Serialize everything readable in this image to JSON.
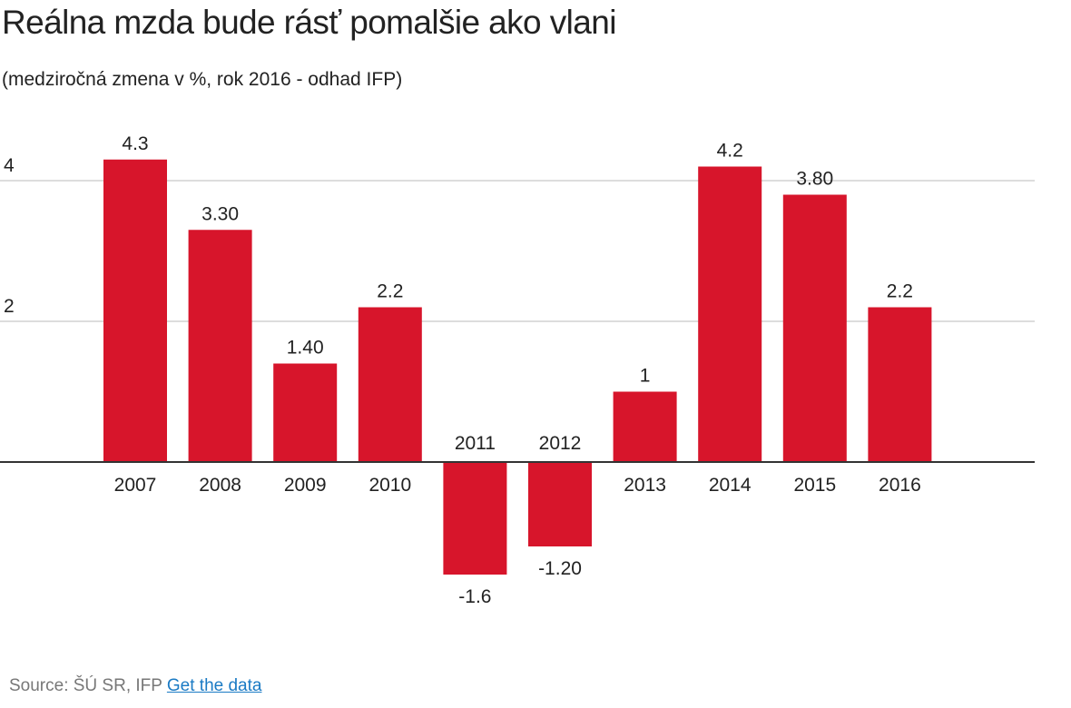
{
  "title": "Reálna mzda bude rásť pomalšie ako vlani",
  "subtitle": "(medziročná zmena v %, rok 2016 - odhad IFP)",
  "footer": {
    "source_text": "Source: ŠÚ SR, IFP",
    "link_text": "Get the data"
  },
  "colors": {
    "bar": "#d7152b",
    "grid": "#dddddd",
    "baseline": "#333333",
    "text": "#222222"
  },
  "chart_data": {
    "type": "bar",
    "title": "Reálna mzda bude rásť pomalšie ako vlani",
    "subtitle": "(medziročná zmena v %, rok 2016 - odhad IFP)",
    "xlabel": "",
    "ylabel": "",
    "categories": [
      "2007",
      "2008",
      "2009",
      "2010",
      "2011",
      "2012",
      "2013",
      "2014",
      "2015",
      "2016"
    ],
    "values": [
      4.3,
      3.3,
      1.4,
      2.2,
      -1.6,
      -1.2,
      1.0,
      4.2,
      3.8,
      2.2
    ],
    "value_labels": [
      "4.3",
      "3.30",
      "1.40",
      "2.2",
      "-1.6",
      "-1.20",
      "1",
      "4.2",
      "3.80",
      "2.2"
    ],
    "y_ticks": [
      2,
      4
    ],
    "y_tick_labels": [
      "2",
      "4"
    ],
    "ylim": [
      -2.6,
      4.8
    ],
    "grid": true,
    "legend": "none"
  }
}
